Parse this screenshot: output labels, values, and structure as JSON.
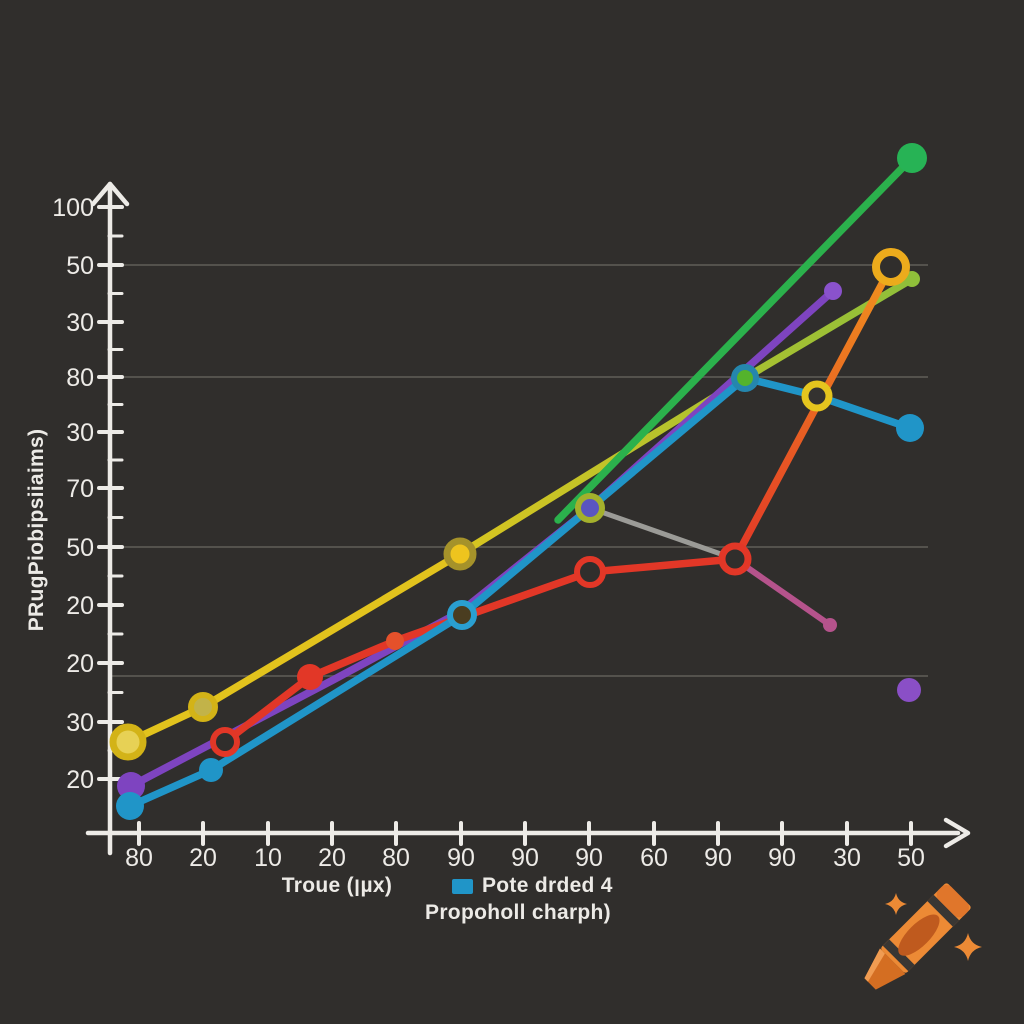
{
  "page": {
    "background": "#302e2c",
    "text_color": "#eceae6"
  },
  "chart_data": {
    "type": "line",
    "title": "",
    "xlabel": "Troue (ןµx)",
    "ylabel": "PRugPiobipsiiaims)",
    "x_tick_labels": [
      "80",
      "20",
      "10",
      "20",
      "80",
      "90",
      "90",
      "90",
      "60",
      "90",
      "90",
      "30",
      "50"
    ],
    "y_tick_labels": [
      "100",
      "50",
      "30",
      "80",
      "30",
      "70",
      "50",
      "20",
      "20",
      "30",
      "20"
    ],
    "legend": {
      "swatch_color": "#2095c8",
      "label": "Pote drded 4",
      "sublabel": "Propoholl charph)"
    },
    "grid": "horizontal-partial",
    "axis_color": "#edebe7",
    "grid_color": "#605e59",
    "layout": {
      "y_axis_x": 110,
      "y_axis_top": 184,
      "y_axis_bottom": 853,
      "x_axis_y": 833,
      "x_axis_left": 88,
      "x_axis_right": 958,
      "x_arrow": [
        [
          946,
          820
        ],
        [
          968,
          833
        ],
        [
          946,
          846
        ]
      ],
      "y_arrow": [
        [
          93,
          204
        ],
        [
          110,
          184
        ],
        [
          127,
          204
        ]
      ],
      "x_ticks": [
        139,
        203,
        268,
        332,
        396,
        461,
        525,
        589,
        654,
        718,
        782,
        847,
        911
      ],
      "y_ticks": [
        207,
        265,
        322,
        377,
        432,
        488,
        547,
        605,
        663,
        722,
        779
      ],
      "gridlines_y": [
        265,
        377,
        547,
        676
      ],
      "grid_x_end": 928
    },
    "series": [
      {
        "name": "yellow-line",
        "width": 7.5,
        "segments": [
          {
            "color": "#e2c31d",
            "points": [
              [
                128,
                742
              ],
              [
                203,
                707
              ],
              [
                460,
                554
              ]
            ]
          },
          {
            "gradient": [
              "#d8c520",
              "#8fbf3a"
            ],
            "points": [
              [
                460,
                554
              ],
              [
                745,
                378
              ],
              [
                912,
                279
              ]
            ]
          }
        ],
        "markers": [
          {
            "x": 128,
            "y": 742,
            "r": 15,
            "fill": "#e7d155",
            "stroke": "#d3b317",
            "sw": 7
          },
          {
            "x": 203,
            "y": 707,
            "r": 12,
            "fill": "#c2b349",
            "stroke": "#d3b317",
            "sw": 6
          },
          {
            "x": 460,
            "y": 554,
            "r": 13,
            "fill": "#eec41e",
            "stroke": "#a5922a",
            "sw": 7
          },
          {
            "x": 912,
            "y": 279,
            "r": 8,
            "fill": "#8fbf3a",
            "sw": 0
          }
        ]
      },
      {
        "name": "purple-line",
        "width": 7.5,
        "segments": [
          {
            "color": "#7e44c0",
            "points": [
              [
                131,
                786
              ],
              [
                333,
                680
              ],
              [
                460,
                612
              ],
              [
                590,
                508
              ],
              [
                833,
                291
              ]
            ]
          }
        ],
        "markers": [
          {
            "x": 131,
            "y": 786,
            "r": 14,
            "fill": "#7e44c0",
            "sw": 0
          },
          {
            "x": 833,
            "y": 291,
            "r": 9,
            "fill": "#8a52cc",
            "sw": 0
          }
        ]
      },
      {
        "name": "gray-line",
        "width": 5,
        "segments": [
          {
            "color": "#9b9b97",
            "points": [
              [
                590,
                508
              ],
              [
                735,
                559
              ]
            ]
          }
        ],
        "markers": []
      },
      {
        "name": "magenta-line",
        "width": 6,
        "segments": [
          {
            "color": "#b5538c",
            "points": [
              [
                735,
                559
              ],
              [
                830,
                625
              ]
            ]
          }
        ],
        "markers": [
          {
            "x": 830,
            "y": 625,
            "r": 7,
            "fill": "#b5538c",
            "sw": 0
          }
        ]
      },
      {
        "name": "red-orange-line",
        "width": 7.5,
        "segments": [
          {
            "color": "#e23727",
            "points": [
              [
                225,
                742
              ],
              [
                310,
                677
              ],
              [
                395,
                641
              ],
              [
                590,
                572
              ],
              [
                735,
                559
              ]
            ]
          },
          {
            "gradient": [
              "#e23727",
              "#f0921e"
            ],
            "points": [
              [
                735,
                559
              ],
              [
                891,
                267
              ]
            ]
          }
        ],
        "markers": [
          {
            "x": 225,
            "y": 742,
            "r": 12,
            "fill": "#302e2c",
            "stroke": "#e23727",
            "sw": 6
          },
          {
            "x": 310,
            "y": 677,
            "r": 13,
            "fill": "#e23727",
            "sw": 0
          },
          {
            "x": 395,
            "y": 641,
            "r": 9,
            "fill": "#e5512b",
            "sw": 0
          },
          {
            "x": 590,
            "y": 572,
            "r": 13,
            "fill": "#302e2c",
            "stroke": "#e23727",
            "sw": 6
          },
          {
            "x": 735,
            "y": 559,
            "r": 13,
            "fill": "#302e2c",
            "stroke": "#e23727",
            "sw": 7
          },
          {
            "x": 817,
            "y": 396,
            "r": 12,
            "fill": "#343230",
            "stroke": "#e5c51e",
            "sw": 7
          },
          {
            "x": 891,
            "y": 267,
            "r": 15,
            "fill": "#302e2c",
            "stroke": "#ecab1c",
            "sw": 8
          }
        ]
      },
      {
        "name": "teal-line",
        "width": 7.5,
        "segments": [
          {
            "color": "#2095c8",
            "points": [
              [
                130,
                806
              ],
              [
                211,
                770
              ],
              [
                462,
                615
              ],
              [
                590,
                508
              ],
              [
                745,
                378
              ],
              [
                817,
                396
              ],
              [
                910,
                428
              ]
            ]
          }
        ],
        "markers": [
          {
            "x": 130,
            "y": 806,
            "r": 14,
            "fill": "#2095c8",
            "sw": 0
          },
          {
            "x": 211,
            "y": 770,
            "r": 12,
            "fill": "#2095c8",
            "sw": 0
          },
          {
            "x": 462,
            "y": 615,
            "r": 12,
            "fill": "#4a3d20",
            "stroke": "#2a9fd0",
            "sw": 6
          },
          {
            "x": 590,
            "y": 508,
            "r": 12,
            "fill": "#5a55c0",
            "stroke": "#a4b02c",
            "sw": 6
          },
          {
            "x": 745,
            "y": 378,
            "r": 11,
            "fill": "#54b32c",
            "stroke": "#2586ad",
            "sw": 6
          },
          {
            "x": 910,
            "y": 428,
            "r": 14,
            "fill": "#2095c8",
            "sw": 0
          }
        ]
      },
      {
        "name": "green-line",
        "width": 7.5,
        "segments": [
          {
            "color": "#2bb14c",
            "points": [
              [
                558,
                520
              ],
              [
                912,
                158
              ]
            ]
          }
        ],
        "markers": [
          {
            "x": 912,
            "y": 158,
            "r": 15,
            "fill": "#27b355",
            "sw": 0
          }
        ]
      }
    ],
    "extra_markers": [
      {
        "name": "lone-purple-dot",
        "x": 909,
        "y": 690,
        "r": 12,
        "fill": "#8a4fc6"
      }
    ]
  },
  "logo": {
    "name": "crayon",
    "body_color": "#ec8a35",
    "label_color": "#bf5a1e",
    "tip_color": "#d46e22",
    "cap_color": "#e0762b",
    "stripe_color": "#393633",
    "sparkle_color": "#ec8a35"
  }
}
